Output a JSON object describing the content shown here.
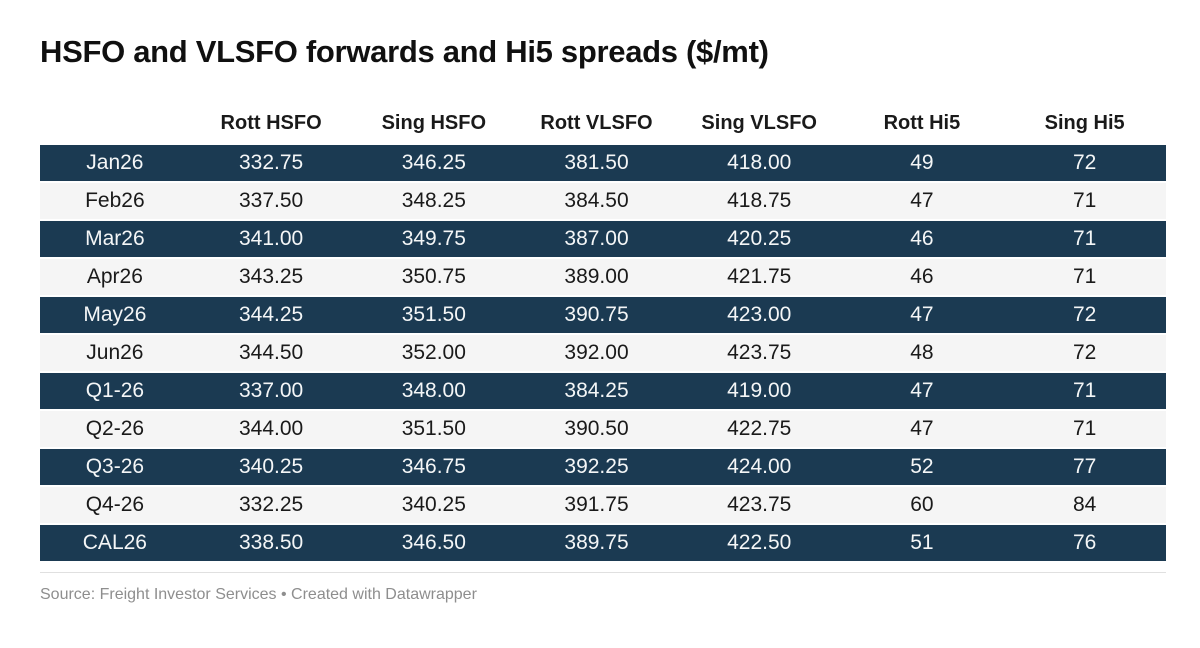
{
  "title": "HSFO and VLSFO forwards and Hi5 spreads ($/mt)",
  "source_note": "Source: Freight Investor Services • Created with Datawrapper",
  "colors": {
    "row_dark": "#1b3a52",
    "row_light": "#f5f5f5",
    "text_on_dark": "#f4f6f7",
    "text_on_light": "#1a1a1a",
    "header_text": "#1a1a1a",
    "title_text": "#101010",
    "source_text": "#8e8e8e",
    "rule": "#e0e0e0",
    "background": "#ffffff"
  },
  "table": {
    "columns": [
      "",
      "Rott HSFO",
      "Sing HSFO",
      "Rott VLSFO",
      "Sing VLSFO",
      "Rott Hi5",
      "Sing Hi5"
    ],
    "rows": [
      {
        "label": "Jan26",
        "values": [
          "332.75",
          "346.25",
          "381.50",
          "418.00",
          "49",
          "72"
        ]
      },
      {
        "label": "Feb26",
        "values": [
          "337.50",
          "348.25",
          "384.50",
          "418.75",
          "47",
          "71"
        ]
      },
      {
        "label": "Mar26",
        "values": [
          "341.00",
          "349.75",
          "387.00",
          "420.25",
          "46",
          "71"
        ]
      },
      {
        "label": "Apr26",
        "values": [
          "343.25",
          "350.75",
          "389.00",
          "421.75",
          "46",
          "71"
        ]
      },
      {
        "label": "May26",
        "values": [
          "344.25",
          "351.50",
          "390.75",
          "423.00",
          "47",
          "72"
        ]
      },
      {
        "label": "Jun26",
        "values": [
          "344.50",
          "352.00",
          "392.00",
          "423.75",
          "48",
          "72"
        ]
      },
      {
        "label": "Q1-26",
        "values": [
          "337.00",
          "348.00",
          "384.25",
          "419.00",
          "47",
          "71"
        ]
      },
      {
        "label": "Q2-26",
        "values": [
          "344.00",
          "351.50",
          "390.50",
          "422.75",
          "47",
          "71"
        ]
      },
      {
        "label": "Q3-26",
        "values": [
          "340.25",
          "346.75",
          "392.25",
          "424.00",
          "52",
          "77"
        ]
      },
      {
        "label": "Q4-26",
        "values": [
          "332.25",
          "340.25",
          "391.75",
          "423.75",
          "60",
          "84"
        ]
      },
      {
        "label": "CAL26",
        "values": [
          "338.50",
          "346.50",
          "389.75",
          "422.50",
          "51",
          "76"
        ]
      }
    ]
  },
  "chart_data": {
    "type": "table",
    "title": "HSFO and VLSFO forwards and Hi5 spreads ($/mt)",
    "categories": [
      "Jan26",
      "Feb26",
      "Mar26",
      "Apr26",
      "May26",
      "Jun26",
      "Q1-26",
      "Q2-26",
      "Q3-26",
      "Q4-26",
      "CAL26"
    ],
    "series": [
      {
        "name": "Rott HSFO",
        "values": [
          332.75,
          337.5,
          341.0,
          343.25,
          344.25,
          344.5,
          337.0,
          344.0,
          340.25,
          332.25,
          338.5
        ]
      },
      {
        "name": "Sing HSFO",
        "values": [
          346.25,
          348.25,
          349.75,
          350.75,
          351.5,
          352.0,
          348.0,
          351.5,
          346.75,
          340.25,
          346.5
        ]
      },
      {
        "name": "Rott VLSFO",
        "values": [
          381.5,
          384.5,
          387.0,
          389.0,
          390.75,
          392.0,
          384.25,
          390.5,
          392.25,
          391.75,
          389.75
        ]
      },
      {
        "name": "Sing VLSFO",
        "values": [
          418.0,
          418.75,
          420.25,
          421.75,
          423.0,
          423.75,
          419.0,
          422.75,
          424.0,
          423.75,
          422.5
        ]
      },
      {
        "name": "Rott Hi5",
        "values": [
          49,
          47,
          46,
          46,
          47,
          48,
          47,
          47,
          52,
          60,
          51
        ]
      },
      {
        "name": "Sing Hi5",
        "values": [
          72,
          71,
          71,
          71,
          72,
          72,
          71,
          71,
          77,
          84,
          76
        ]
      }
    ],
    "units": "$/mt",
    "source": "Freight Investor Services",
    "created_with": "Datawrapper",
    "layout_hints": {
      "striped_rows": true,
      "stripe_style": "odd rows dark navy with white text, even rows light gray with dark text",
      "alignment": "center"
    }
  }
}
